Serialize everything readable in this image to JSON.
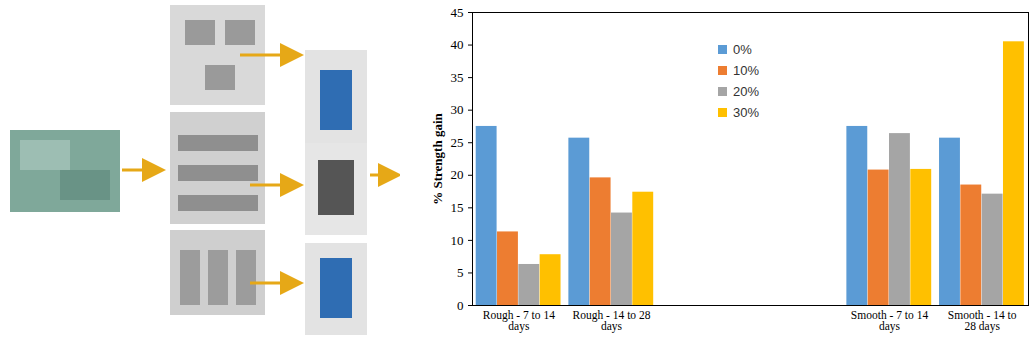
{
  "chart_data": {
    "type": "bar",
    "y_label": "% Strength gain",
    "categories": [
      "Rough - 7 to 14 days",
      "Rough - 14 to 28 days",
      null,
      null,
      "Smooth - 7 to 14 days",
      "Smooth - 14 to 28 days"
    ],
    "series": [
      {
        "name": "0%",
        "color": "#5b9bd5",
        "values": [
          27.5,
          25.7,
          null,
          null,
          27.5,
          25.7
        ]
      },
      {
        "name": "10%",
        "color": "#ed7d31",
        "values": [
          11.3,
          19.6,
          null,
          null,
          20.8,
          18.5
        ]
      },
      {
        "name": "20%",
        "color": "#a5a5a5",
        "values": [
          6.3,
          14.2,
          null,
          null,
          26.4,
          17.1
        ]
      },
      {
        "name": "30%",
        "color": "#ffc000",
        "values": [
          7.8,
          17.4,
          null,
          null,
          20.9,
          40.5
        ]
      }
    ],
    "ylim": [
      0,
      45
    ],
    "yticks": [
      0,
      5,
      10,
      15,
      20,
      25,
      30,
      35,
      40,
      45
    ],
    "grid": false,
    "legend": "top"
  }
}
